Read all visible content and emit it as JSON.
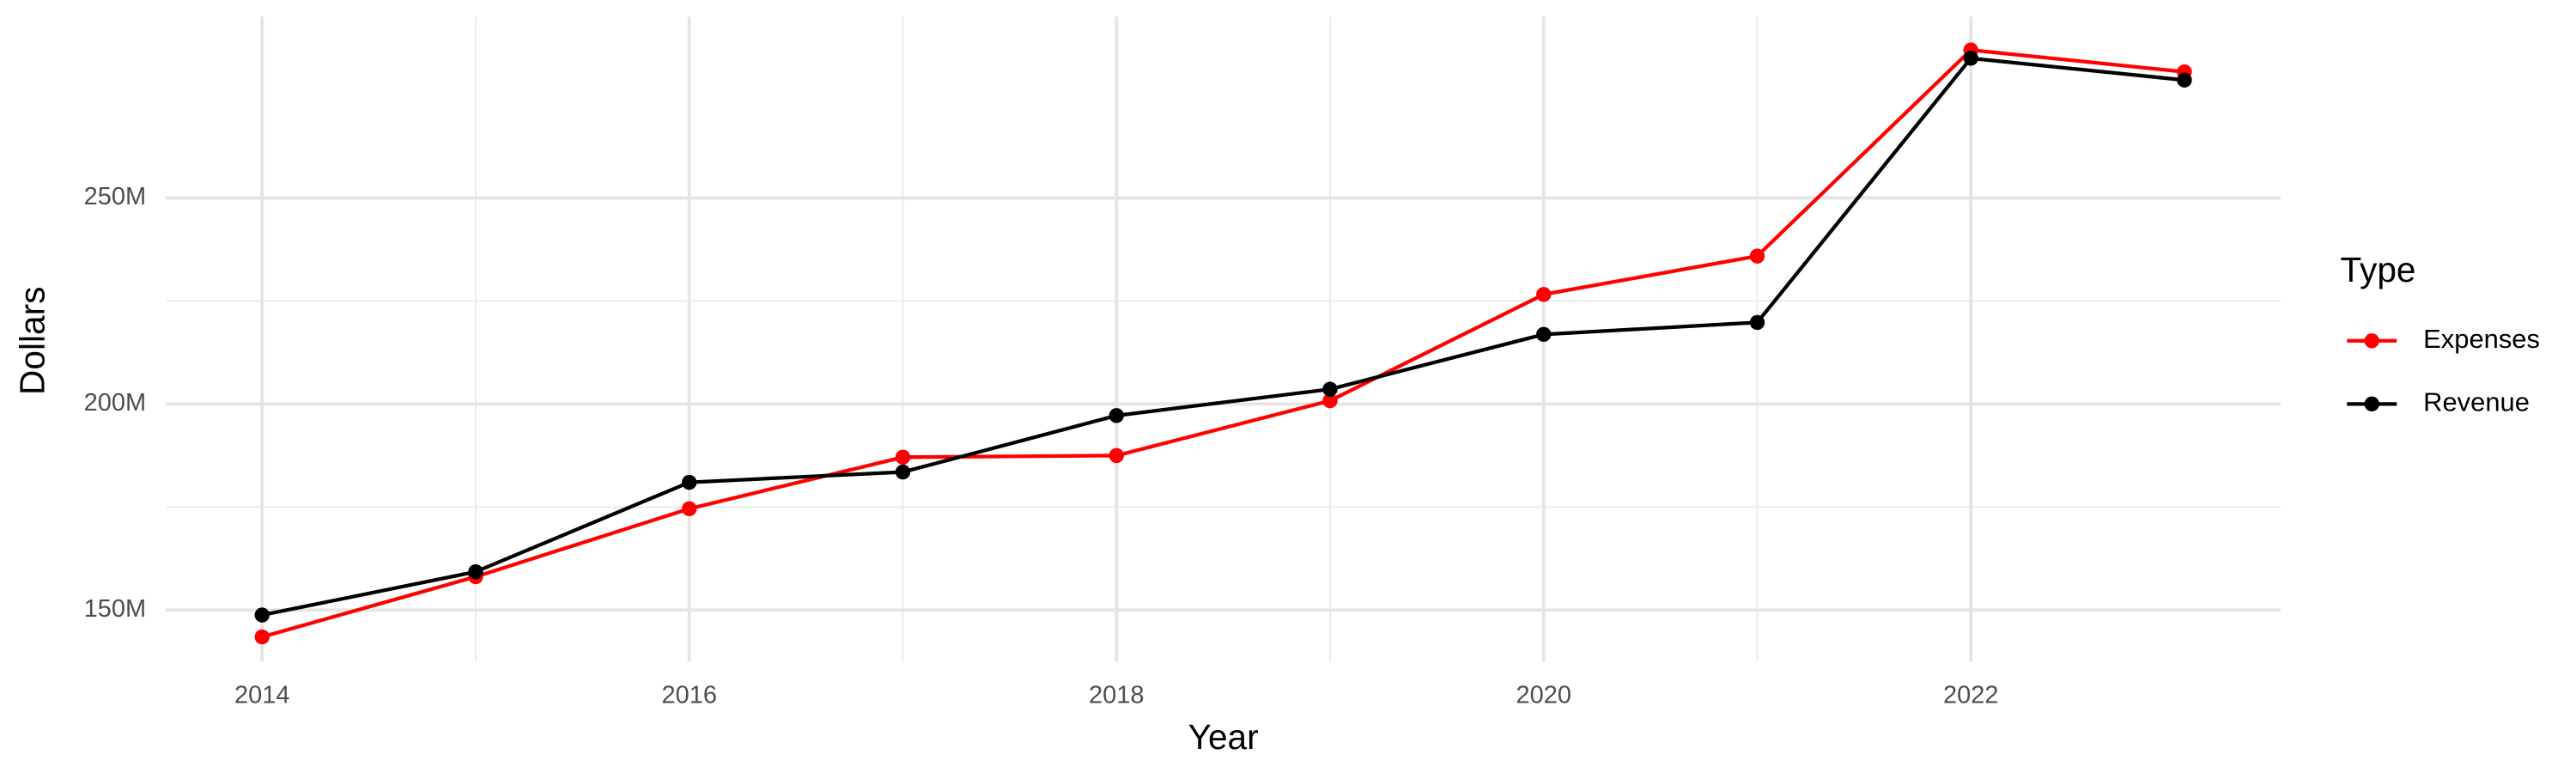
{
  "chart_data": {
    "type": "line",
    "x_label": "Year",
    "y_label": "Dollars",
    "legend_title": "Type",
    "legend_position": "right",
    "grid": true,
    "x": [
      2014,
      2015,
      2016,
      2017,
      2018,
      2019,
      2020,
      2021,
      2022,
      2023
    ],
    "series": [
      {
        "name": "Expenses",
        "color": "#ff0000",
        "values": [
          143500000,
          158100000,
          174600000,
          187100000,
          187500000,
          200800000,
          226600000,
          235900000,
          285900000,
          280600000
        ]
      },
      {
        "name": "Revenue",
        "color": "#000000",
        "values": [
          148800000,
          159300000,
          181000000,
          183500000,
          197200000,
          203600000,
          216900000,
          219800000,
          283900000,
          278600000
        ]
      }
    ],
    "xlim": [
      2013.55,
      2023.45
    ],
    "xticks": [
      2014,
      2016,
      2018,
      2020,
      2022
    ],
    "ylim": [
      137500000,
      294000000
    ],
    "yticks": [
      {
        "value": 150000000,
        "label": "150M"
      },
      {
        "value": 200000000,
        "label": "200M"
      },
      {
        "value": 250000000,
        "label": "250M"
      }
    ]
  }
}
